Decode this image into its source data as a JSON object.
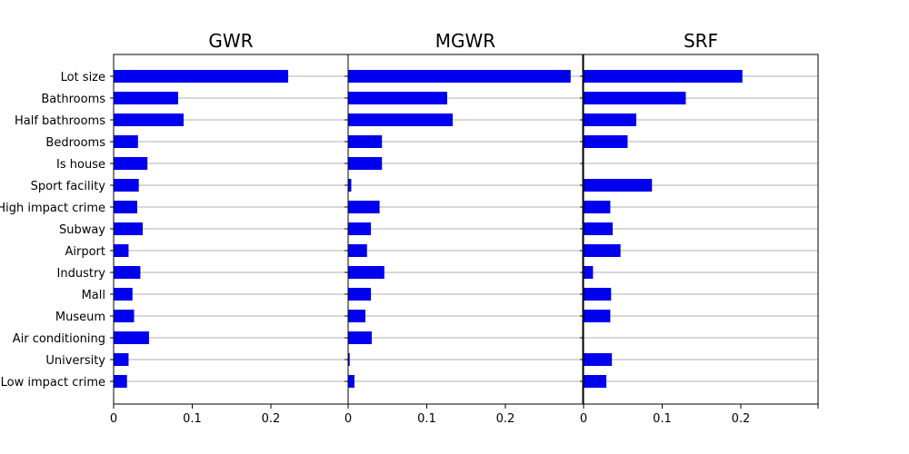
{
  "chart_data": {
    "type": "bar",
    "orientation": "horizontal",
    "bar_color": "#0000ee",
    "grid": "y",
    "categories": [
      "Lot size",
      "Bathrooms",
      "Half bathrooms",
      "Bedrooms",
      "Is house",
      "Sport facility",
      "High impact crime",
      "Subway",
      "Airport",
      "Industry",
      "Mall",
      "Museum",
      "Air conditioning",
      "University",
      "Low impact crime"
    ],
    "xticks": [
      "0",
      "0.1",
      "0.2"
    ],
    "xlim": [
      0,
      0.3
    ],
    "panels": [
      {
        "title": "GWR",
        "values": [
          0.222,
          0.082,
          0.089,
          0.031,
          0.043,
          0.032,
          0.03,
          0.037,
          0.019,
          0.034,
          0.024,
          0.026,
          0.045,
          0.019,
          0.017
        ]
      },
      {
        "title": "MGWR",
        "values": [
          0.283,
          0.126,
          0.133,
          0.043,
          0.043,
          0.004,
          0.04,
          0.029,
          0.024,
          0.046,
          0.029,
          0.022,
          0.03,
          0.002,
          0.008
        ]
      },
      {
        "title": "SRF",
        "values": [
          0.202,
          0.13,
          0.067,
          0.056,
          0.0,
          0.087,
          0.034,
          0.037,
          0.047,
          0.012,
          0.035,
          0.034,
          0.0,
          0.036,
          0.029
        ]
      }
    ]
  }
}
